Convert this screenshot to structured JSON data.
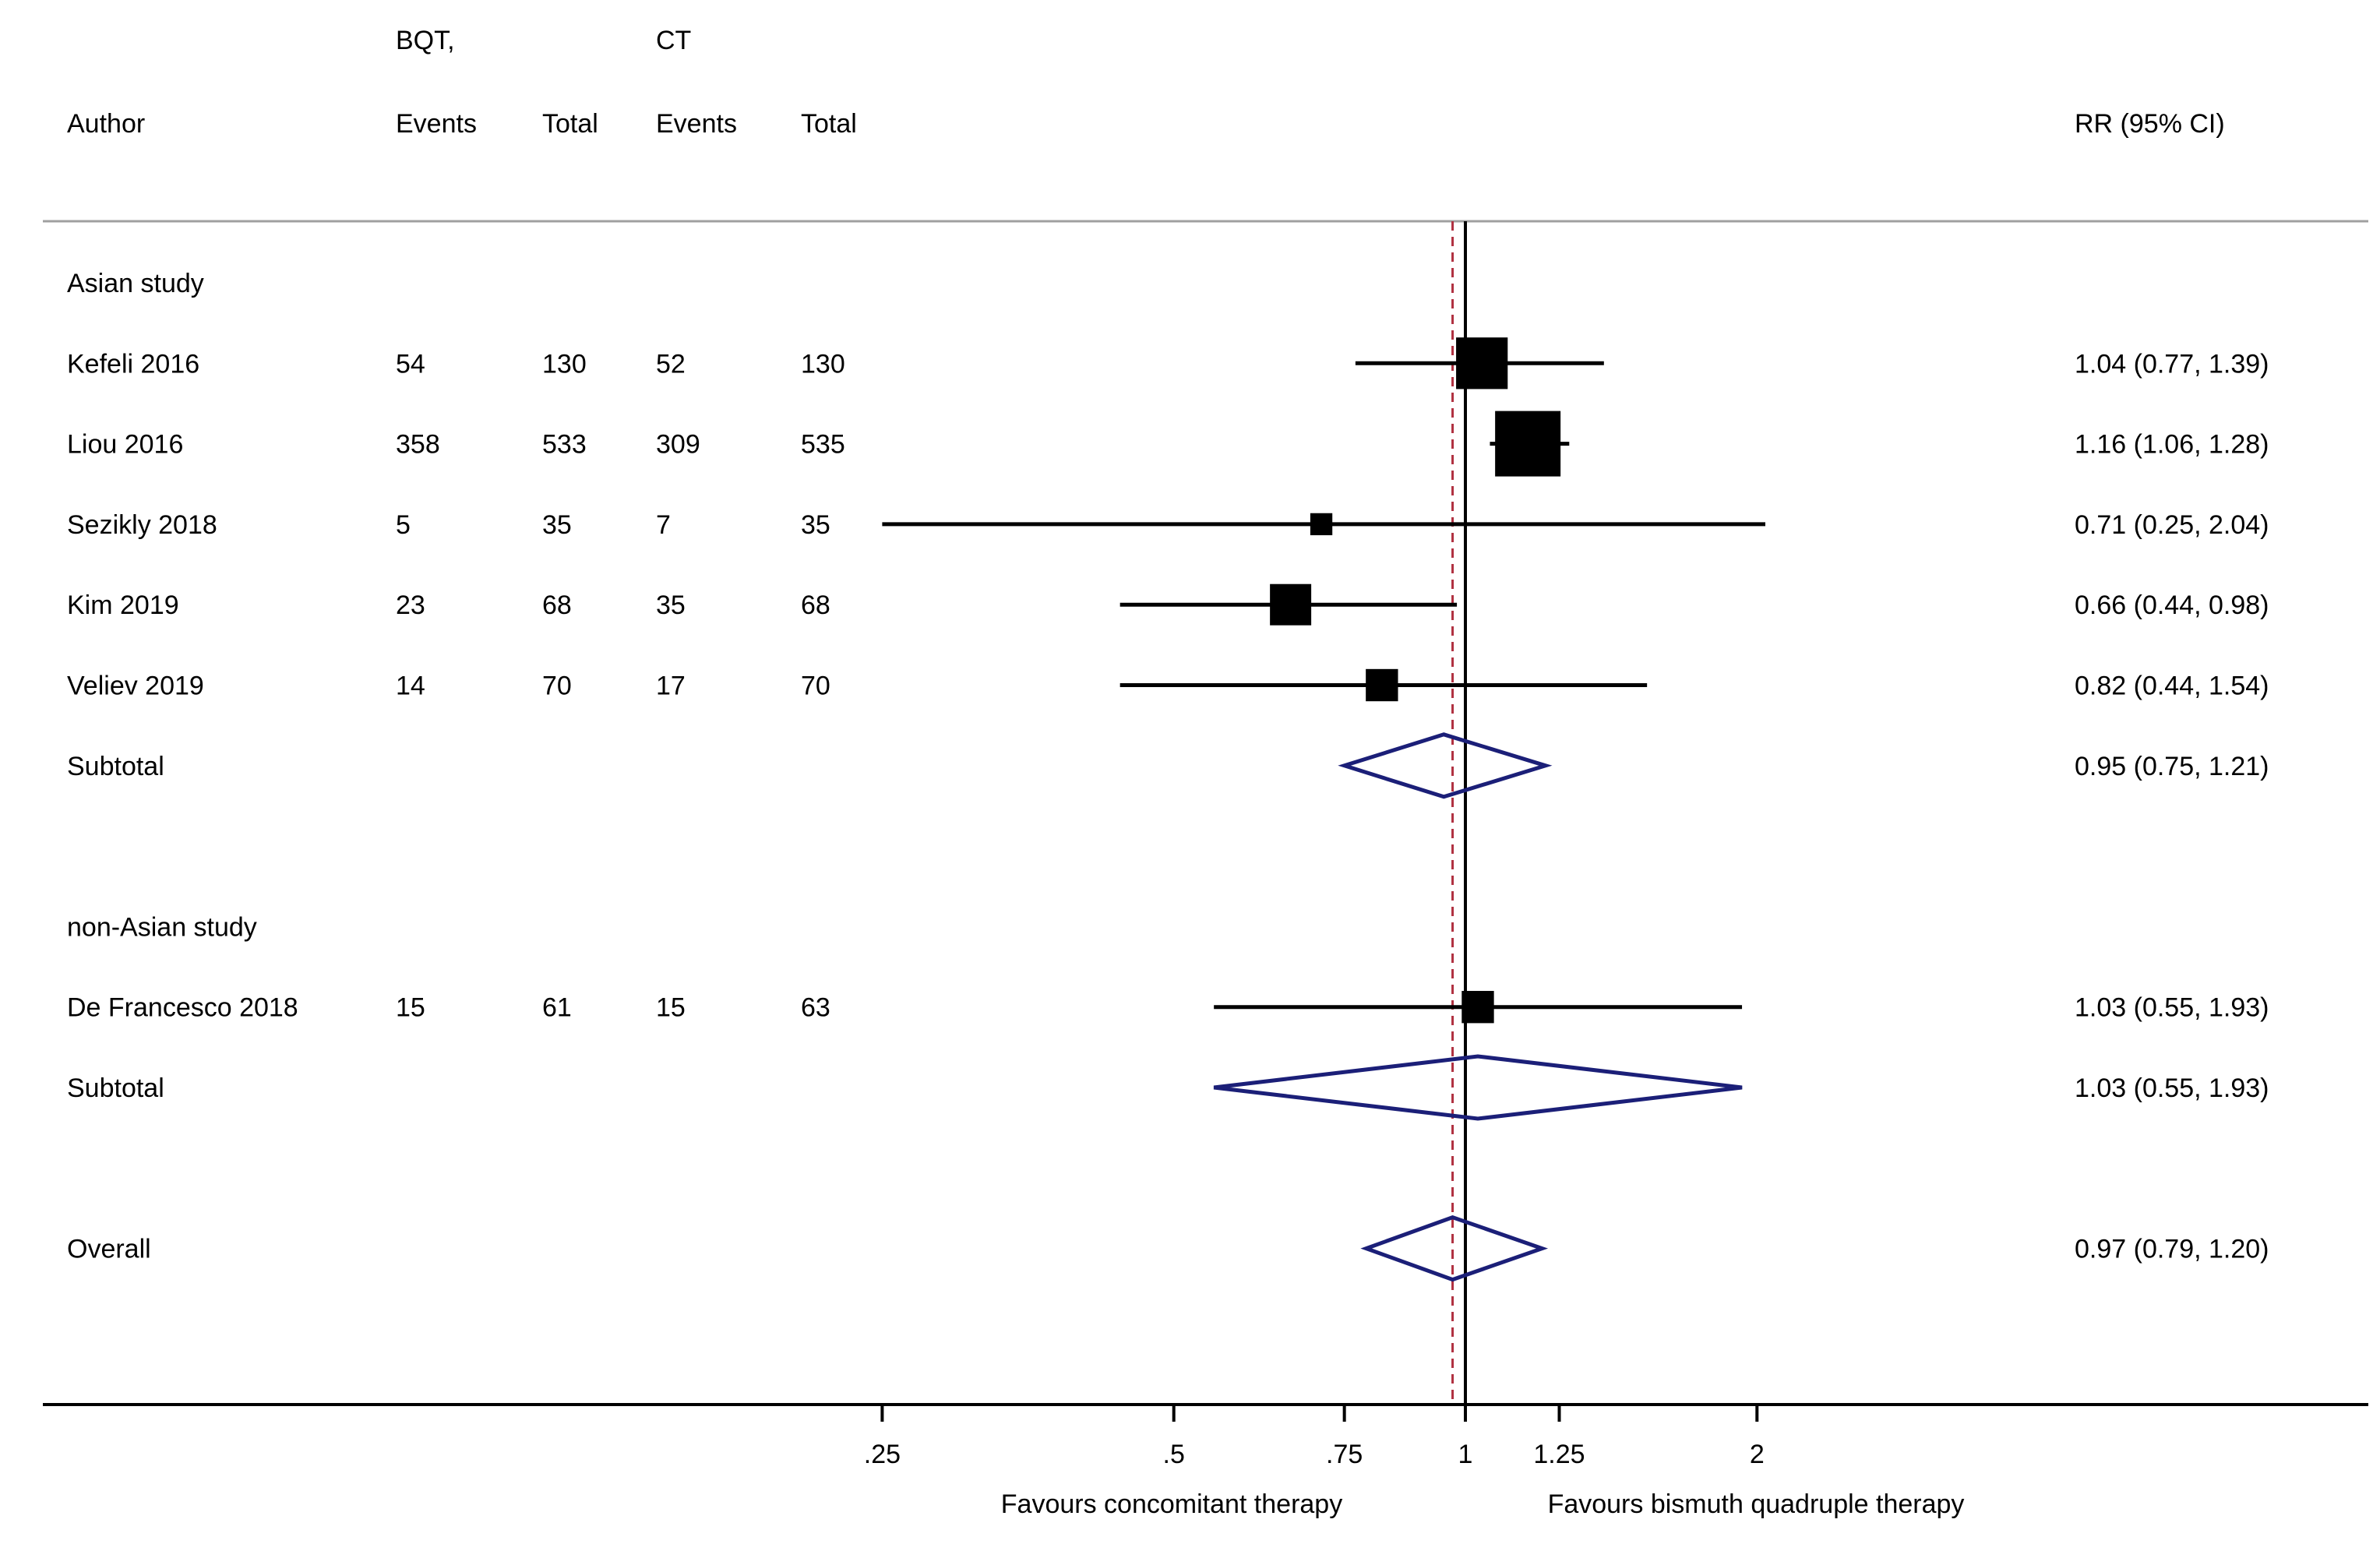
{
  "header": {
    "author": "Author",
    "group1": "BQT,",
    "group2": "CT",
    "events1": "Events",
    "total1": "Total",
    "events2": "Events",
    "total2": "Total",
    "effect": "RR (95% CI)"
  },
  "chart_data": {
    "type": "forest",
    "scale": "log",
    "xticks": [
      {
        "value": 0.25,
        "label": ".25"
      },
      {
        "value": 0.5,
        "label": ".5"
      },
      {
        "value": 0.75,
        "label": ".75"
      },
      {
        "value": 1,
        "label": "1"
      },
      {
        "value": 1.25,
        "label": "1.25"
      },
      {
        "value": 2,
        "label": "2"
      }
    ],
    "null_line": 1,
    "overall_line": 0.97,
    "xlabel_left": "Favours concomitant therapy",
    "xlabel_right": "Favours bismuth quadruple therapy",
    "colors": {
      "marker": "#000000",
      "diamond": "#1b1f78",
      "overall_line": "#b03040",
      "axis": "#000000",
      "separator": "#a0a0a0"
    },
    "rows": [
      {
        "kind": "group",
        "label": "Asian study"
      },
      {
        "kind": "study",
        "label": "Kefeli 2016",
        "e1": "54",
        "n1": "130",
        "e2": "52",
        "n2": "130",
        "rr": 1.04,
        "lo": 0.77,
        "hi": 1.39,
        "text": "1.04 (0.77, 1.39)",
        "weight": 16.4
      },
      {
        "kind": "study",
        "label": "Liou 2016",
        "e1": "358",
        "n1": "533",
        "e2": "309",
        "n2": "535",
        "rr": 1.16,
        "lo": 1.06,
        "hi": 1.28,
        "text": "1.16 (1.06, 1.28)",
        "weight": 26.4
      },
      {
        "kind": "study",
        "label": "Sezikly  2018",
        "e1": "5",
        "n1": "35",
        "e2": "7",
        "n2": "35",
        "rr": 0.71,
        "lo": 0.25,
        "hi": 2.04,
        "text": "0.71 (0.25, 2.04)",
        "weight": 3.0
      },
      {
        "kind": "study",
        "label": "Kim  2019",
        "e1": "23",
        "n1": "68",
        "e2": "35",
        "n2": "68",
        "rr": 0.66,
        "lo": 0.44,
        "hi": 0.98,
        "text": "0.66 (0.44, 0.98)",
        "weight": 10.5
      },
      {
        "kind": "study",
        "label": "Veliev 2019",
        "e1": "14",
        "n1": "70",
        "e2": "17",
        "n2": "70",
        "rr": 0.82,
        "lo": 0.44,
        "hi": 1.54,
        "text": "0.82 (0.44, 1.54)",
        "weight": 6.4
      },
      {
        "kind": "subtotal",
        "label": "Subtotal",
        "rr": 0.95,
        "lo": 0.75,
        "hi": 1.21,
        "text": "0.95 (0.75, 1.21)"
      },
      {
        "kind": "blank"
      },
      {
        "kind": "group",
        "label": "non-Asian study"
      },
      {
        "kind": "study",
        "label": "De Francesco 2018",
        "e1": "15",
        "n1": "61",
        "e2": "15",
        "n2": "63",
        "rr": 1.03,
        "lo": 0.55,
        "hi": 1.93,
        "text": "1.03 (0.55, 1.93)",
        "weight": 6.4
      },
      {
        "kind": "subtotal",
        "label": "Subtotal",
        "rr": 1.03,
        "lo": 0.55,
        "hi": 1.93,
        "text": "1.03 (0.55, 1.93)"
      },
      {
        "kind": "blank"
      },
      {
        "kind": "overall",
        "label": "Overall",
        "rr": 0.97,
        "lo": 0.79,
        "hi": 1.2,
        "text": "0.97 (0.79, 1.20)"
      }
    ]
  }
}
